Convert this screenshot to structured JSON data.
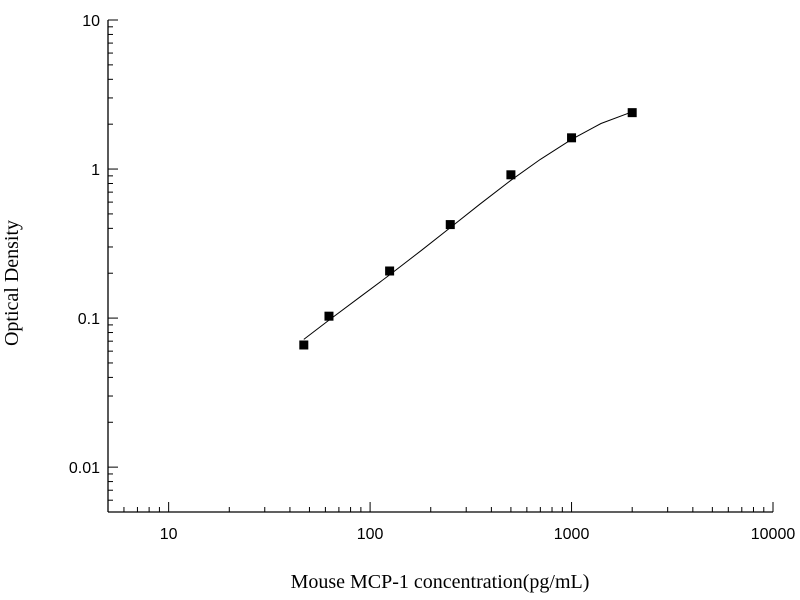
{
  "chart_data": {
    "type": "scatter",
    "title": "",
    "xlabel": "Mouse MCP-1 concentration(pg/mL)",
    "ylabel": "Optical Density",
    "xscale": "log",
    "yscale": "log",
    "xlim": [
      5,
      10000
    ],
    "ylim": [
      0.005,
      10
    ],
    "x_ticks": [
      10,
      100,
      1000,
      10000
    ],
    "x_tick_labels": [
      "10",
      "100",
      "1000",
      "10000"
    ],
    "y_ticks": [
      0.01,
      0.1,
      1,
      10
    ],
    "y_tick_labels": [
      "0.01",
      "0.1",
      "1",
      "10"
    ],
    "grid": false,
    "legend": "none",
    "series": [
      {
        "x": [
          46.875,
          62.5,
          125,
          250,
          500,
          1000,
          2000
        ],
        "y": [
          0.066,
          0.103,
          0.207,
          0.424,
          0.915,
          1.62,
          2.39
        ],
        "marker": "square",
        "color": "#000000"
      }
    ],
    "fit_curve": {
      "x": [
        46.875,
        62.5,
        90,
        125,
        180,
        250,
        350,
        500,
        700,
        1000,
        1400,
        2000
      ],
      "y": [
        0.072,
        0.097,
        0.14,
        0.195,
        0.285,
        0.405,
        0.58,
        0.84,
        1.16,
        1.58,
        2.02,
        2.42
      ],
      "color": "#000000"
    }
  }
}
